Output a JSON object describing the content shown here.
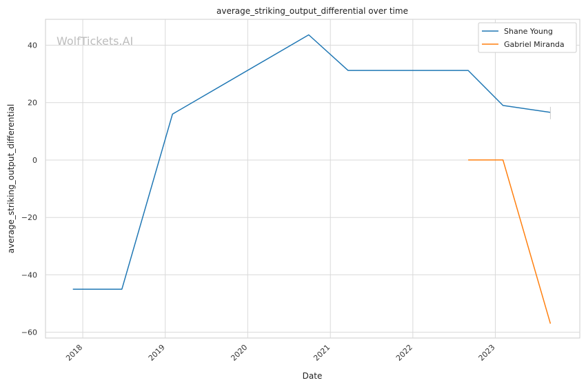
{
  "chart_data": {
    "type": "line",
    "title": "average_striking_output_differential over time",
    "xlabel": "Date",
    "ylabel": "average_striking_output_differential",
    "watermark": "WolfTickets.AI",
    "x_ticks": [
      "2018",
      "2019",
      "2020",
      "2021",
      "2022",
      "2023"
    ],
    "y_ticks": [
      40,
      20,
      0,
      -20,
      -40,
      -60
    ],
    "xlim": [
      "2017-07-20",
      "2024-01-10"
    ],
    "ylim": [
      -62,
      49
    ],
    "grid": true,
    "legend_position": "top-right",
    "series": [
      {
        "name": "Shane Young",
        "color": "#1f77b4",
        "points": [
          [
            "2017-11-18",
            -45
          ],
          [
            "2018-06-23",
            -45
          ],
          [
            "2019-02-02",
            16
          ],
          [
            "2020-09-27",
            43.6
          ],
          [
            "2021-03-20",
            31.2
          ],
          [
            "2022-09-03",
            31.2
          ],
          [
            "2023-02-04",
            19
          ],
          [
            "2023-09-02",
            16.6
          ]
        ]
      },
      {
        "name": "Gabriel Miranda",
        "color": "#ff7f0e",
        "points": [
          [
            "2022-09-03",
            0
          ],
          [
            "2023-02-04",
            0
          ],
          [
            "2023-09-02",
            -57
          ]
        ]
      }
    ]
  }
}
